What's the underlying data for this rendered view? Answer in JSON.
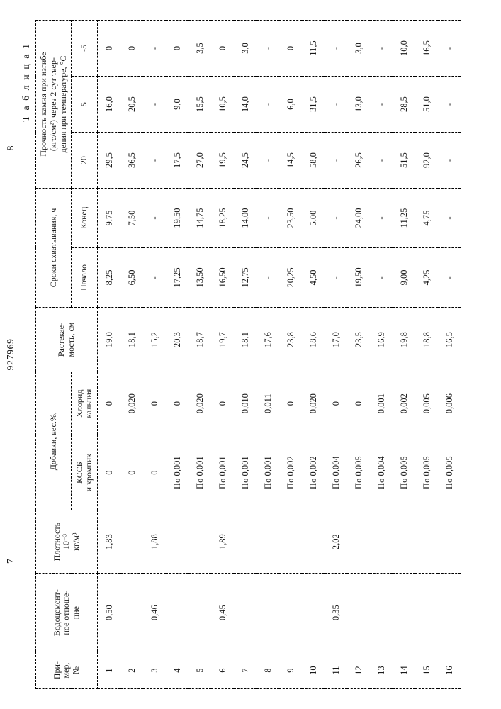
{
  "page_header": {
    "left_num": "7",
    "doc_num": "927969",
    "right_num": "8"
  },
  "caption": "Т а б л и ц а  1",
  "columns": {
    "c1": "При-\nмер,\n№",
    "c2": "Водоцемент-\nное отноше-\nние",
    "c3": "Плотность\n10⁻³\nкг/м³",
    "additives_group": "Добавки, вес.%,",
    "c4": "КССБ\nи хромпик",
    "c5": "Хлорид\nкальция",
    "c6": "Растекае-\nмость, см",
    "setting_group": "Сроки схватывания, ч",
    "c7": "Начало",
    "c8": "Конец",
    "strength_group": "Прочность камня при изгибе\n(кгс/см²) через 2 сут твер-\nдения при температуре, °С",
    "c9": "20",
    "c10": "5",
    "c11": "-5"
  },
  "rows": [
    {
      "n": "1",
      "wc": "0,50",
      "dens": "1,83",
      "kssb": "0",
      "cacl": "0",
      "flow": "19,0",
      "beg": "8,25",
      "end": "9,75",
      "s20": "29,5",
      "s5": "16,0",
      "sm5": "0"
    },
    {
      "n": "2",
      "wc": "",
      "dens": "",
      "kssb": "0",
      "cacl": "0,020",
      "flow": "18,1",
      "beg": "6,50",
      "end": "7,50",
      "s20": "36,5",
      "s5": "20,5",
      "sm5": "0"
    },
    {
      "n": "3",
      "wc": "0,46",
      "dens": "1,88",
      "kssb": "0",
      "cacl": "0",
      "flow": "15,2",
      "beg": "-",
      "end": "-",
      "s20": "-",
      "s5": "-",
      "sm5": "-"
    },
    {
      "n": "4",
      "wc": "",
      "dens": "",
      "kssb": "По 0,001",
      "cacl": "0",
      "flow": "20,3",
      "beg": "17,25",
      "end": "19,50",
      "s20": "17,5",
      "s5": "9,0",
      "sm5": "0"
    },
    {
      "n": "5",
      "wc": "",
      "dens": "",
      "kssb": "По 0,001",
      "cacl": "0,020",
      "flow": "18,7",
      "beg": "13,50",
      "end": "14,75",
      "s20": "27,0",
      "s5": "15,5",
      "sm5": "3,5"
    },
    {
      "n": "6",
      "wc": "0,45",
      "dens": "1,89",
      "kssb": "По 0,001",
      "cacl": "0",
      "flow": "19,7",
      "beg": "16,50",
      "end": "18,25",
      "s20": "19,5",
      "s5": "10,5",
      "sm5": "0"
    },
    {
      "n": "7",
      "wc": "",
      "dens": "",
      "kssb": "По 0,001",
      "cacl": "0,010",
      "flow": "18,1",
      "beg": "12,75",
      "end": "14,00",
      "s20": "24,5",
      "s5": "14,0",
      "sm5": "3,0"
    },
    {
      "n": "8",
      "wc": "",
      "dens": "",
      "kssb": "По 0,001",
      "cacl": "0,011",
      "flow": "17,6",
      "beg": "-",
      "end": "-",
      "s20": "-",
      "s5": "-",
      "sm5": "-"
    },
    {
      "n": "9",
      "wc": "",
      "dens": "",
      "kssb": "По 0,002",
      "cacl": "0",
      "flow": "23,8",
      "beg": "20,25",
      "end": "23,50",
      "s20": "14,5",
      "s5": "6,0",
      "sm5": "0"
    },
    {
      "n": "10",
      "wc": "",
      "dens": "",
      "kssb": "По 0,002",
      "cacl": "0,020",
      "flow": "18,6",
      "beg": "4,50",
      "end": "5,00",
      "s20": "58,0",
      "s5": "31,5",
      "sm5": "11,5"
    },
    {
      "n": "11",
      "wc": "0,35",
      "dens": "2,02",
      "kssb": "По 0,004",
      "cacl": "0",
      "flow": "17,0",
      "beg": "-",
      "end": "-",
      "s20": "-",
      "s5": "-",
      "sm5": "-"
    },
    {
      "n": "12",
      "wc": "",
      "dens": "",
      "kssb": "По 0,005",
      "cacl": "0",
      "flow": "23,5",
      "beg": "19,50",
      "end": "24,00",
      "s20": "26,5",
      "s5": "13,0",
      "sm5": "3,0"
    },
    {
      "n": "13",
      "wc": "",
      "dens": "",
      "kssb": "По 0,004",
      "cacl": "0,001",
      "flow": "16,9",
      "beg": "-",
      "end": "-",
      "s20": "-",
      "s5": "-",
      "sm5": "-"
    },
    {
      "n": "14",
      "wc": "",
      "dens": "",
      "kssb": "По 0,005",
      "cacl": "0,002",
      "flow": "19,8",
      "beg": "9,00",
      "end": "11,25",
      "s20": "51,5",
      "s5": "28,5",
      "sm5": "10,0"
    },
    {
      "n": "15",
      "wc": "",
      "dens": "",
      "kssb": "По 0,005",
      "cacl": "0,005",
      "flow": "18,8",
      "beg": "4,25",
      "end": "4,75",
      "s20": "92,0",
      "s5": "51,0",
      "sm5": "16,5"
    },
    {
      "n": "16",
      "wc": "",
      "dens": "",
      "kssb": "По 0,005",
      "cacl": "0,006",
      "flow": "16,5",
      "beg": "-",
      "end": "-",
      "s20": "-",
      "s5": "-",
      "sm5": "-"
    }
  ],
  "style": {
    "font_family": "serif",
    "text_color": "#1a1a1a",
    "background": "#ffffff",
    "border_style": "dashed",
    "border_color": "#000000",
    "cell_fontsize_pt": 12.5,
    "header_fontsize_pt": 12
  }
}
